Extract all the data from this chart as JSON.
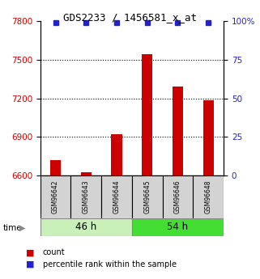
{
  "title": "GDS2233 / 1456581_x_at",
  "samples": [
    "GSM96642",
    "GSM96643",
    "GSM96644",
    "GSM96645",
    "GSM96646",
    "GSM96648"
  ],
  "counts": [
    6720,
    6625,
    6920,
    7540,
    7290,
    7185
  ],
  "percentiles": [
    99,
    99,
    99,
    99,
    99,
    99
  ],
  "group_colors": [
    "#c8f0b8",
    "#44dd33"
  ],
  "bar_color": "#cc0000",
  "dot_color": "#2222cc",
  "ylim_left": [
    6600,
    7800
  ],
  "ylim_right": [
    0,
    100
  ],
  "yticks_left": [
    6600,
    6900,
    7200,
    7500,
    7800
  ],
  "yticks_right": [
    0,
    25,
    50,
    75,
    100
  ],
  "ytick_labels_right": [
    "0",
    "25",
    "50",
    "75",
    "100%"
  ],
  "grid_values": [
    7500,
    7200,
    6900
  ],
  "background_color": "#ffffff",
  "sample_box_color": "#d3d3d3",
  "legend_count_label": "count",
  "legend_pct_label": "percentile rank within the sample",
  "time_label": "time",
  "group_label_46": "46 h",
  "group_label_54": "54 h"
}
